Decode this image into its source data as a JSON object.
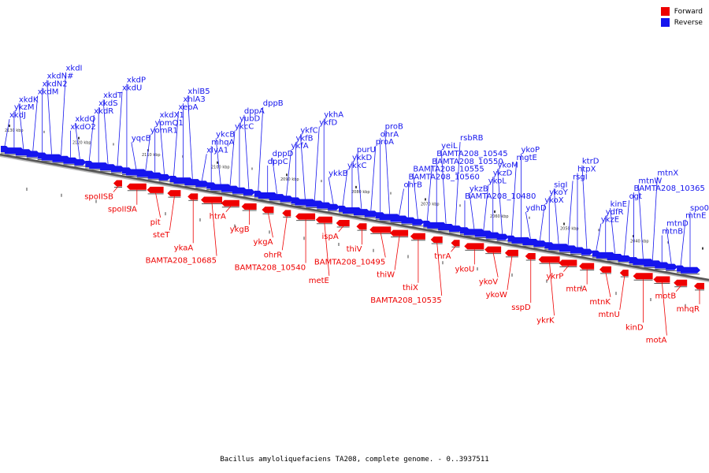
{
  "legend": {
    "forward_label": "Forward",
    "reverse_label": "Reverse",
    "forward_color": "#ee0000",
    "reverse_color": "#1515ee"
  },
  "caption": "Bacillus amyloliquefaciens TA208, complete genome. - 0..3937511",
  "ticks": [
    "2130 kbp",
    "2120 kbp",
    "2110 kbp",
    "2100 kbp",
    "2090 kbp",
    "2080 kbp",
    "2070 kbp",
    "2060 kbp",
    "2050 kbp",
    "2040 kbp"
  ],
  "reverse_genes": [
    "xkdJ",
    "ykzM",
    "xkdK",
    "xkdM",
    "xkdN2",
    "xkdN#",
    "xkdI",
    "xkdO2",
    "xkdQ",
    "xkdR",
    "xkdS",
    "xkdT",
    "xkdU",
    "xkdP",
    "yqcB",
    "yomR1",
    "yomQ1",
    "xkdX1",
    "xepA",
    "xhlA3",
    "xhlB5",
    "xlyA1",
    "mhqA",
    "ykcB",
    "ykcC",
    "yubD",
    "dppA",
    "dppB",
    "dppC",
    "dppD",
    "ykfA",
    "ykfB",
    "ykfC",
    "ykfD",
    "ykhA",
    "ykkB",
    "ykkC",
    "ykkD",
    "purU",
    "proA",
    "ohrA",
    "proB",
    "ohrB",
    "BAMTA208_10560",
    "BAMTA208_10555",
    "BAMTA208_10550",
    "BAMTA208_10545",
    "yeiL",
    "rsbRB",
    "BAMTA208_10480",
    "ykzB",
    "ykoL",
    "ykzD",
    "ykoM",
    "mgtE",
    "ykoP",
    "ydhD",
    "ykoX",
    "ykoY",
    "sigI",
    "rsgI",
    "htpX",
    "ktrD",
    "ykzE",
    "ydfR",
    "kinE",
    "ogt",
    "BAMTA208_10365",
    "mtnW",
    "mtnX",
    "mtnB",
    "mtnD",
    "mtnE",
    "spo0E"
  ],
  "forward_genes": [
    "spoIISB",
    "spoIISA",
    "pit",
    "steT",
    "ykaA",
    "BAMTA208_10685",
    "htrA",
    "ykgB",
    "ykgA",
    "ohrR",
    "BAMTA208_10540",
    "metE",
    "ispA",
    "thiV",
    "BAMTA208_10495",
    "thiW",
    "thiX",
    "BAMTA208_10535",
    "tnrA",
    "ykoU",
    "ykoV",
    "ykoW",
    "sspD",
    "ykrK",
    "ykrP",
    "mtnA",
    "mtnK",
    "mtnU",
    "kinD",
    "motA",
    "motB",
    "mhqR"
  ]
}
